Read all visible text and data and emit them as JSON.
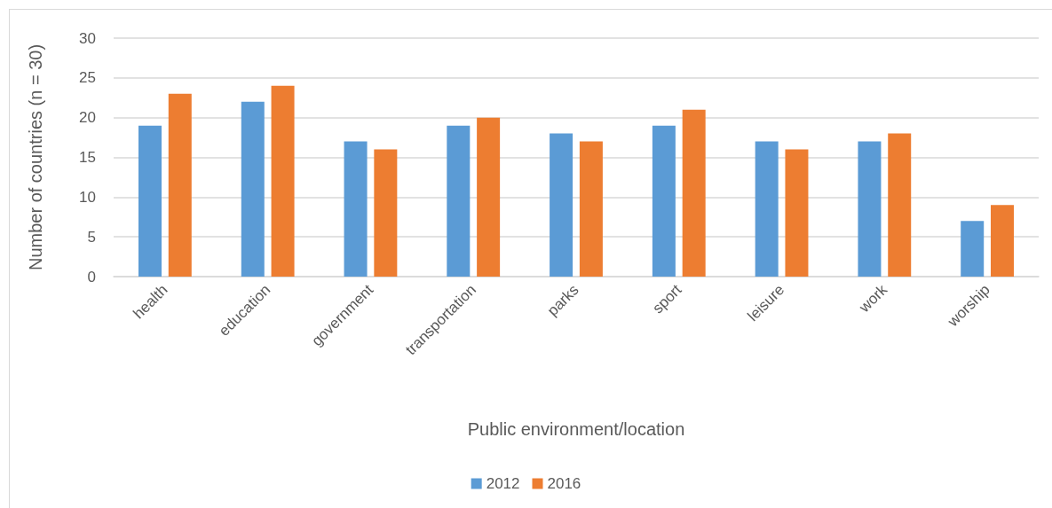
{
  "chart_data": {
    "type": "bar",
    "xlabel": "Public environment/location",
    "ylabel": "Number of countries (n = 30)",
    "categories": [
      "health",
      "education",
      "government",
      "transportation",
      "parks",
      "sport",
      "leisure",
      "work",
      "worship"
    ],
    "series": [
      {
        "name": "2012",
        "color": "#5b9bd5",
        "values": [
          19,
          22,
          17,
          19,
          18,
          19,
          17,
          17,
          7
        ]
      },
      {
        "name": "2016",
        "color": "#ed7d31",
        "values": [
          23,
          24,
          16,
          20,
          17,
          21,
          16,
          18,
          9
        ]
      }
    ],
    "ylim": [
      0,
      30
    ],
    "yticks": [
      0,
      5,
      10,
      15,
      20,
      25,
      30
    ],
    "grid": "y",
    "legend": "bottom"
  }
}
